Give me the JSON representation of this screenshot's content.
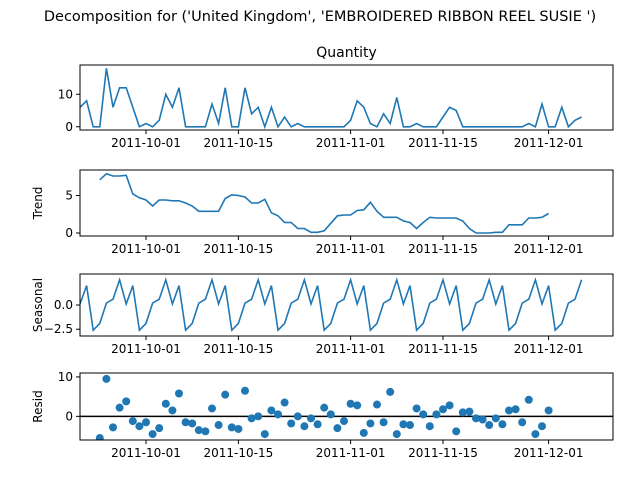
{
  "chart_data": {
    "suptitle": "Decomposition for ('United Kingdom', 'EMBROIDERED RIBBON REEL SUSIE ')",
    "x_ticks": [
      "2011-10-01",
      "2011-10-15",
      "2011-11-01",
      "2011-11-15",
      "2011-12-01"
    ],
    "line_color": "#1f77b4",
    "panels": [
      {
        "type": "line",
        "title": "Quantity",
        "ylabel": "",
        "ylim": [
          -1,
          19
        ],
        "yticks": [
          0,
          10
        ],
        "ytick_labels": [
          "0",
          "10"
        ],
        "x_start_day": 0,
        "values": [
          6,
          8,
          0,
          0,
          18,
          6,
          12,
          12,
          6,
          0,
          1,
          0,
          2,
          10,
          6,
          12,
          0,
          0,
          0,
          0,
          7,
          1,
          12,
          0,
          0,
          12,
          4,
          6,
          0,
          6,
          0,
          3,
          0,
          1,
          0,
          0,
          0,
          0,
          0,
          0,
          0,
          2,
          8,
          6,
          1,
          0,
          4,
          1,
          9,
          0,
          0,
          1,
          0,
          0,
          0,
          3,
          6,
          5,
          0,
          0,
          0,
          0,
          0,
          0,
          0,
          0,
          0,
          0,
          1,
          0,
          7,
          0,
          0,
          6,
          0,
          2,
          3
        ]
      },
      {
        "type": "line",
        "title": "",
        "ylabel": "Trend",
        "ylim": [
          -0.4,
          8.4
        ],
        "yticks": [
          0,
          5
        ],
        "ytick_labels": [
          "0",
          "5"
        ],
        "x_start_day": 3,
        "values": [
          7.1,
          7.9,
          7.6,
          7.6,
          7.7,
          5.2,
          4.7,
          4.4,
          3.6,
          4.4,
          4.4,
          4.3,
          4.3,
          4.0,
          3.6,
          2.9,
          2.9,
          2.9,
          2.9,
          4.6,
          5.1,
          5.0,
          4.8,
          4.0,
          4.0,
          4.5,
          2.7,
          2.3,
          1.4,
          1.4,
          0.6,
          0.6,
          0.1,
          0.1,
          0.3,
          1.3,
          2.3,
          2.4,
          2.4,
          3.0,
          3.1,
          4.1,
          2.9,
          2.1,
          2.1,
          2.1,
          1.6,
          1.4,
          0.6,
          1.4,
          2.1,
          2.0,
          2.0,
          2.0,
          2.0,
          1.6,
          0.6,
          0.0,
          0.0,
          0.0,
          0.1,
          0.1,
          1.1,
          1.1,
          1.1,
          2.0,
          2.0,
          2.1,
          2.6
        ]
      },
      {
        "type": "line",
        "title": "",
        "ylabel": "Seasonal",
        "ylim": [
          -3.2,
          3.2
        ],
        "yticks": [
          0.0,
          -2.5
        ],
        "ytick_labels": [
          "0.0",
          "−2.5"
        ],
        "x_start_day": 0,
        "values": [
          0.1,
          2.0,
          -2.6,
          -1.9,
          0.2,
          0.6,
          2.6,
          0.1,
          2.0,
          -2.6,
          -1.9,
          0.2,
          0.6,
          2.6,
          0.1,
          2.0,
          -2.6,
          -1.9,
          0.2,
          0.6,
          2.6,
          0.1,
          2.0,
          -2.6,
          -1.9,
          0.2,
          0.6,
          2.6,
          0.1,
          2.0,
          -2.6,
          -1.9,
          0.2,
          0.6,
          2.6,
          0.1,
          2.0,
          -2.6,
          -1.9,
          0.2,
          0.6,
          2.6,
          0.1,
          2.0,
          -2.6,
          -1.9,
          0.2,
          0.6,
          2.6,
          0.1,
          2.0,
          -2.6,
          -1.9,
          0.2,
          0.6,
          2.6,
          0.1,
          2.0,
          -2.6,
          -1.9,
          0.2,
          0.6,
          2.6,
          0.1,
          2.0,
          -2.6,
          -1.9,
          0.2,
          0.6,
          2.6,
          0.1,
          2.0,
          -2.6,
          -1.9,
          0.2,
          0.6,
          2.6
        ]
      },
      {
        "type": "scatter",
        "title": "",
        "ylabel": "Resid",
        "ylim": [
          -6,
          11
        ],
        "yticks": [
          0,
          10
        ],
        "ytick_labels": [
          "0",
          "10"
        ],
        "baseline": 0,
        "x_start_day": 3,
        "values": [
          -5.5,
          9.5,
          -2.8,
          2.2,
          3.8,
          -1.2,
          -2.5,
          -1.5,
          -4.5,
          -3.0,
          3.2,
          1.5,
          5.8,
          -1.5,
          -1.8,
          -3.5,
          -3.8,
          2.0,
          -2.2,
          5.5,
          -2.8,
          -3.2,
          6.5,
          -0.5,
          0.0,
          -4.5,
          1.5,
          0.5,
          3.5,
          -1.8,
          0.0,
          -2.5,
          -0.5,
          -2.0,
          2.2,
          0.5,
          -3.0,
          -1.2,
          3.2,
          2.8,
          -4.2,
          -1.8,
          3.0,
          -1.5,
          6.2,
          -4.5,
          -2.0,
          -2.2,
          2.0,
          0.5,
          -2.5,
          0.5,
          1.8,
          2.8,
          -3.8,
          1.0,
          1.2,
          -0.5,
          -0.8,
          -2.2,
          -0.5,
          -2.0,
          1.5,
          1.8,
          -1.5,
          4.2,
          -4.5,
          -2.5,
          1.5
        ]
      }
    ]
  }
}
